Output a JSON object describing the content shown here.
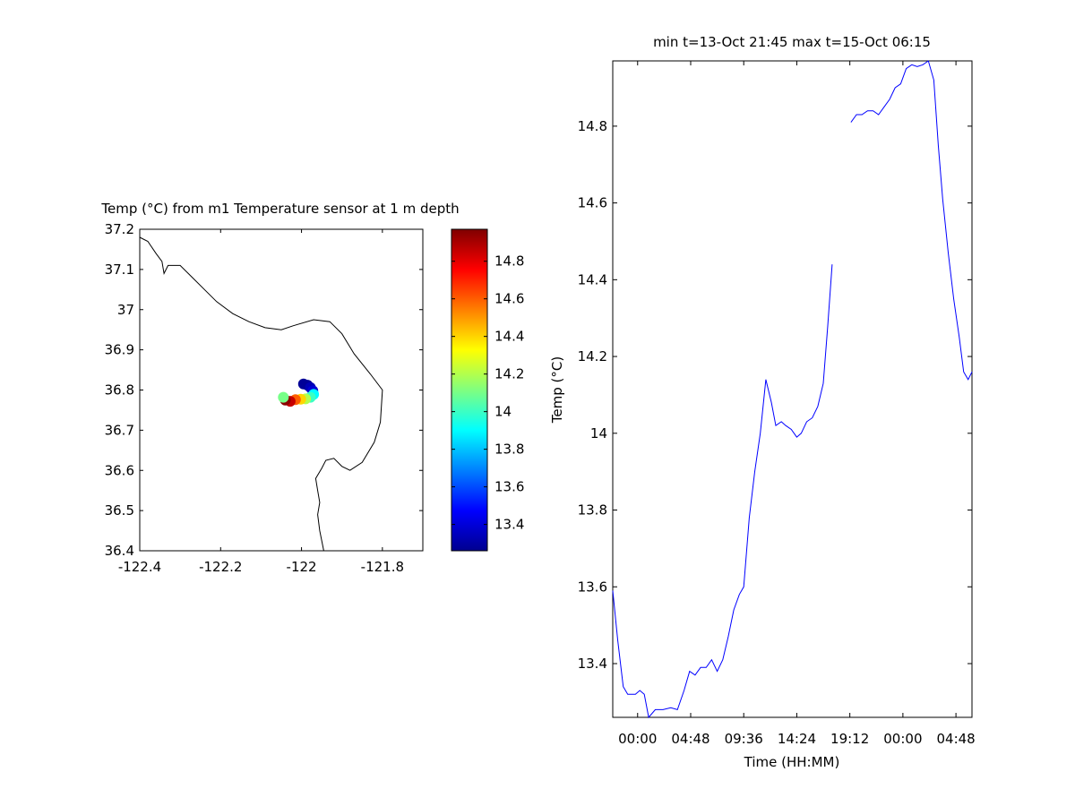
{
  "chart_data": [
    {
      "type": "scatter",
      "panel": "map",
      "title": "Temp (°C) from m1 Temperature sensor at 1 m depth",
      "xlabel": "",
      "ylabel": "",
      "xlim": [
        -122.4,
        -121.7
      ],
      "ylim": [
        36.4,
        37.2
      ],
      "x_ticks": [
        -122.4,
        -122.2,
        -122,
        -121.8
      ],
      "x_tick_labels": [
        "-122.4",
        "-122.2",
        "-122",
        "-121.8"
      ],
      "y_ticks": [
        36.4,
        36.5,
        36.6,
        36.7,
        36.8,
        36.9,
        37,
        37.1,
        37.2
      ],
      "y_tick_labels": [
        "36.4",
        "36.5",
        "36.6",
        "36.7",
        "36.8",
        "36.9",
        "37",
        "37.1",
        "37.2"
      ],
      "grid": false,
      "coastline": [
        [
          -122.4,
          37.18
        ],
        [
          -122.38,
          37.17
        ],
        [
          -122.36,
          37.14
        ],
        [
          -122.345,
          37.12
        ],
        [
          -122.34,
          37.09
        ],
        [
          -122.33,
          37.11
        ],
        [
          -122.3,
          37.11
        ],
        [
          -122.27,
          37.08
        ],
        [
          -122.24,
          37.05
        ],
        [
          -122.21,
          37.02
        ],
        [
          -122.17,
          36.99
        ],
        [
          -122.13,
          36.97
        ],
        [
          -122.09,
          36.955
        ],
        [
          -122.05,
          36.95
        ],
        [
          -122.02,
          36.96
        ],
        [
          -121.97,
          36.975
        ],
        [
          -121.93,
          36.97
        ],
        [
          -121.9,
          36.94
        ],
        [
          -121.87,
          36.89
        ],
        [
          -121.83,
          36.84
        ],
        [
          -121.8,
          36.8
        ],
        [
          -121.805,
          36.72
        ],
        [
          -121.82,
          36.67
        ],
        [
          -121.85,
          36.62
        ],
        [
          -121.88,
          36.6
        ],
        [
          -121.9,
          36.61
        ],
        [
          -121.92,
          36.63
        ],
        [
          -121.94,
          36.625
        ],
        [
          -121.95,
          36.605
        ],
        [
          -121.965,
          36.58
        ],
        [
          -121.96,
          36.55
        ],
        [
          -121.955,
          36.52
        ],
        [
          -121.96,
          36.49
        ],
        [
          -121.955,
          36.45
        ],
        [
          -121.945,
          36.4
        ]
      ],
      "points": [
        {
          "lon": -121.995,
          "lat": 36.815,
          "temp": 13.3
        },
        {
          "lon": -121.985,
          "lat": 36.812,
          "temp": 13.3
        },
        {
          "lon": -121.978,
          "lat": 36.806,
          "temp": 13.35
        },
        {
          "lon": -121.972,
          "lat": 36.798,
          "temp": 13.4
        },
        {
          "lon": -121.97,
          "lat": 36.789,
          "temp": 13.9
        },
        {
          "lon": -121.978,
          "lat": 36.782,
          "temp": 14.0
        },
        {
          "lon": -121.99,
          "lat": 36.778,
          "temp": 14.2
        },
        {
          "lon": -122.002,
          "lat": 36.777,
          "temp": 14.4
        },
        {
          "lon": -122.015,
          "lat": 36.776,
          "temp": 14.6
        },
        {
          "lon": -122.028,
          "lat": 36.772,
          "temp": 14.85
        },
        {
          "lon": -122.04,
          "lat": 36.775,
          "temp": 14.95
        },
        {
          "lon": -122.045,
          "lat": 36.782,
          "temp": 14.1
        }
      ],
      "colorbar": {
        "ticks": [
          13.4,
          13.6,
          13.8,
          14,
          14.2,
          14.4,
          14.6,
          14.8
        ],
        "tick_labels": [
          "13.4",
          "13.6",
          "13.8",
          "14",
          "14.2",
          "14.4",
          "14.6",
          "14.8"
        ],
        "range": [
          13.26,
          14.97
        ],
        "colormap": "jet"
      }
    },
    {
      "type": "line",
      "panel": "timeseries",
      "title": "min t=13-Oct 21:45 max t=15-Oct 06:15",
      "xlabel": "Time (HH:MM)",
      "ylabel": "Temp (°C)",
      "x_tick_labels": [
        "00:00",
        "04:48",
        "09:36",
        "14:24",
        "19:12",
        "00:00",
        "04:48"
      ],
      "x_ticks_hours": [
        0,
        4.8,
        9.6,
        14.4,
        19.2,
        24,
        28.8
      ],
      "xlim_hours": [
        -2.25,
        30.25
      ],
      "ylim": [
        13.26,
        14.97
      ],
      "y_ticks": [
        13.4,
        13.6,
        13.8,
        14,
        14.2,
        14.4,
        14.6,
        14.8
      ],
      "y_tick_labels": [
        "13.4",
        "13.6",
        "13.8",
        "14",
        "14.2",
        "14.4",
        "14.6",
        "14.8"
      ],
      "grid": false,
      "line_color": "#0000ff",
      "series": [
        {
          "segments": [
            [
              [
                -2.25,
                13.59
              ],
              [
                -1.8,
                13.46
              ],
              [
                -1.3,
                13.34
              ],
              [
                -0.9,
                13.32
              ],
              [
                -0.2,
                13.32
              ],
              [
                0.2,
                13.33
              ],
              [
                0.6,
                13.32
              ],
              [
                1.0,
                13.26
              ],
              [
                1.6,
                13.28
              ],
              [
                2.3,
                13.28
              ],
              [
                3.0,
                13.285
              ],
              [
                3.6,
                13.28
              ],
              [
                4.2,
                13.33
              ],
              [
                4.7,
                13.38
              ],
              [
                5.2,
                13.37
              ],
              [
                5.7,
                13.39
              ],
              [
                6.2,
                13.39
              ],
              [
                6.7,
                13.41
              ],
              [
                7.2,
                13.38
              ],
              [
                7.7,
                13.41
              ],
              [
                8.2,
                13.47
              ],
              [
                8.7,
                13.54
              ],
              [
                9.2,
                13.58
              ],
              [
                9.6,
                13.6
              ],
              [
                10.1,
                13.78
              ],
              [
                10.6,
                13.9
              ],
              [
                11.1,
                14.0
              ],
              [
                11.6,
                14.14
              ],
              [
                12.1,
                14.08
              ],
              [
                12.5,
                14.02
              ],
              [
                13.0,
                14.03
              ],
              [
                13.4,
                14.02
              ],
              [
                13.9,
                14.01
              ],
              [
                14.4,
                13.99
              ],
              [
                14.8,
                14.0
              ],
              [
                15.3,
                14.03
              ],
              [
                15.8,
                14.04
              ],
              [
                16.3,
                14.07
              ],
              [
                16.8,
                14.13
              ],
              [
                17.2,
                14.28
              ],
              [
                17.6,
                14.44
              ]
            ],
            [
              [
                19.3,
                14.81
              ],
              [
                19.8,
                14.83
              ],
              [
                20.3,
                14.83
              ],
              [
                20.8,
                14.84
              ],
              [
                21.3,
                14.84
              ],
              [
                21.8,
                14.83
              ],
              [
                22.3,
                14.85
              ],
              [
                22.8,
                14.87
              ],
              [
                23.3,
                14.9
              ],
              [
                23.8,
                14.91
              ],
              [
                24.3,
                14.95
              ],
              [
                24.8,
                14.96
              ],
              [
                25.3,
                14.955
              ],
              [
                25.8,
                14.96
              ],
              [
                26.3,
                14.97
              ],
              [
                26.8,
                14.92
              ],
              [
                27.2,
                14.75
              ],
              [
                27.6,
                14.61
              ],
              [
                28.1,
                14.47
              ],
              [
                28.6,
                14.35
              ],
              [
                29.1,
                14.25
              ],
              [
                29.5,
                14.16
              ],
              [
                29.9,
                14.14
              ],
              [
                30.25,
                14.16
              ]
            ]
          ]
        }
      ]
    }
  ]
}
